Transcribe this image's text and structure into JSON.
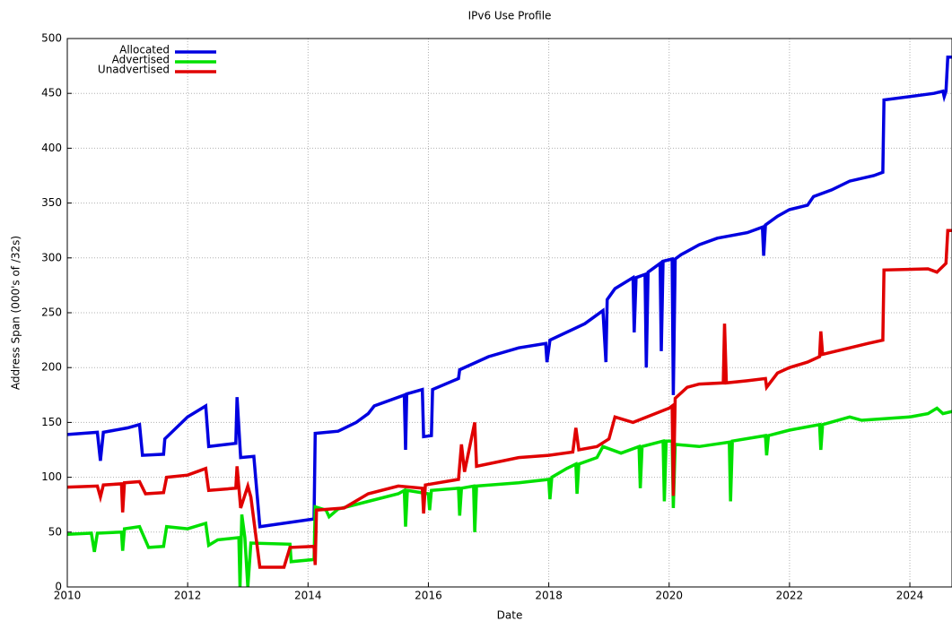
{
  "chart_data": {
    "type": "line",
    "title": "IPv6 Use Profile",
    "x_label": "Date",
    "y_label": "Address Span (000's of /32s)",
    "xlim": [
      2010,
      2024.7
    ],
    "xticks": [
      2010,
      2012,
      2014,
      2016,
      2018,
      2020,
      2022,
      2024
    ],
    "ylim": [
      0,
      500
    ],
    "yticks": [
      0,
      50,
      100,
      150,
      200,
      250,
      300,
      350,
      400,
      450,
      500
    ],
    "grid": true,
    "legend": "upper left",
    "series": [
      {
        "name": "Allocated",
        "color": "#0000e0",
        "x": [
          2010,
          2010.5,
          2010.55,
          2010.6,
          2011,
          2011.2,
          2011.25,
          2011.6,
          2011.62,
          2012,
          2012.3,
          2012.35,
          2012.8,
          2012.82,
          2012.88,
          2013.1,
          2013.2,
          2014.1,
          2014.12,
          2014.5,
          2014.8,
          2015,
          2015.1,
          2015.6,
          2015.62,
          2015.64,
          2015.9,
          2015.92,
          2016.05,
          2016.07,
          2016.5,
          2016.52,
          2017,
          2017.5,
          2017.95,
          2017.97,
          2018.02,
          2018.6,
          2018.9,
          2018.95,
          2018.97,
          2019.1,
          2019.4,
          2019.42,
          2019.45,
          2019.6,
          2019.62,
          2019.65,
          2019.85,
          2019.87,
          2019.9,
          2020.05,
          2020.07,
          2020.1,
          2020.2,
          2020.5,
          2020.8,
          2021.3,
          2021.55,
          2021.57,
          2021.6,
          2021.8,
          2022,
          2022.3,
          2022.4,
          2022.7,
          2023,
          2023.4,
          2023.55,
          2023.57,
          2024.4,
          2024.55,
          2024.57,
          2024.6,
          2024.63,
          2024.7
        ],
        "values": [
          139,
          141,
          115,
          141,
          145,
          148,
          120,
          121,
          135,
          155,
          165,
          128,
          131,
          173,
          118,
          119,
          55,
          62,
          140,
          142,
          150,
          158,
          165,
          175,
          125,
          176,
          180,
          137,
          138,
          180,
          190,
          198,
          210,
          218,
          222,
          205,
          225,
          240,
          252,
          205,
          262,
          272,
          282,
          232,
          282,
          285,
          200,
          287,
          295,
          215,
          297,
          299,
          175,
          299,
          303,
          312,
          318,
          323,
          328,
          302,
          330,
          338,
          344,
          348,
          356,
          362,
          370,
          375,
          378,
          444,
          450,
          452,
          447,
          452,
          483,
          483
        ]
      },
      {
        "name": "Advertised",
        "color": "#00e000",
        "x": [
          2010,
          2010.4,
          2010.45,
          2010.5,
          2010.9,
          2010.92,
          2010.95,
          2011.2,
          2011.35,
          2011.6,
          2011.65,
          2012,
          2012.3,
          2012.35,
          2012.5,
          2012.85,
          2012.87,
          2012.9,
          2012.95,
          2013,
          2013.05,
          2013.7,
          2013.72,
          2014.1,
          2014.12,
          2014.3,
          2014.35,
          2014.5,
          2015,
          2015.5,
          2015.6,
          2015.62,
          2015.65,
          2016,
          2016.02,
          2016.05,
          2016.5,
          2016.52,
          2016.55,
          2016.75,
          2016.77,
          2016.8,
          2017.5,
          2018,
          2018.02,
          2018.05,
          2018.3,
          2018.45,
          2018.47,
          2018.5,
          2018.8,
          2018.9,
          2019.2,
          2019.5,
          2019.52,
          2019.55,
          2019.9,
          2019.92,
          2019.95,
          2020.05,
          2020.07,
          2020.1,
          2020.5,
          2021,
          2021.02,
          2021.05,
          2021.6,
          2021.62,
          2021.65,
          2022,
          2022.5,
          2022.52,
          2022.55,
          2023,
          2023.2,
          2024,
          2024.3,
          2024.45,
          2024.55,
          2024.7
        ],
        "values": [
          48,
          49,
          32,
          49,
          50,
          33,
          53,
          55,
          36,
          37,
          55,
          53,
          58,
          38,
          43,
          45,
          0,
          66,
          45,
          0,
          40,
          39,
          23,
          25,
          73,
          70,
          64,
          71,
          78,
          85,
          88,
          55,
          88,
          85,
          70,
          88,
          90,
          65,
          90,
          92,
          50,
          92,
          95,
          98,
          80,
          100,
          108,
          112,
          85,
          112,
          118,
          128,
          122,
          128,
          90,
          128,
          133,
          78,
          133,
          133,
          72,
          130,
          128,
          132,
          78,
          133,
          138,
          120,
          138,
          143,
          148,
          125,
          148,
          155,
          152,
          155,
          158,
          163,
          158,
          160
        ]
      },
      {
        "name": "Unadvertised",
        "color": "#e00000",
        "x": [
          2010,
          2010.5,
          2010.55,
          2010.6,
          2010.9,
          2010.92,
          2010.95,
          2011.2,
          2011.3,
          2011.6,
          2011.65,
          2012,
          2012.3,
          2012.35,
          2012.8,
          2012.82,
          2012.88,
          2013,
          2013.05,
          2013.2,
          2013.6,
          2013.7,
          2014.1,
          2014.12,
          2014.14,
          2014.6,
          2015,
          2015.5,
          2015.9,
          2015.92,
          2015.95,
          2016.5,
          2016.55,
          2016.6,
          2016.77,
          2016.8,
          2017.5,
          2018,
          2018.4,
          2018.45,
          2018.5,
          2018.8,
          2019,
          2019.1,
          2019.4,
          2020,
          2020.05,
          2020.07,
          2020.1,
          2020.3,
          2020.5,
          2020.9,
          2020.92,
          2020.95,
          2021.3,
          2021.6,
          2021.62,
          2021.8,
          2022,
          2022.3,
          2022.5,
          2022.52,
          2022.55,
          2023,
          2023.3,
          2023.55,
          2023.57,
          2024.3,
          2024.45,
          2024.6,
          2024.63,
          2024.7
        ],
        "values": [
          91,
          92,
          82,
          93,
          94,
          68,
          95,
          96,
          85,
          86,
          100,
          102,
          108,
          88,
          90,
          110,
          72,
          92,
          82,
          18,
          18,
          36,
          37,
          20,
          70,
          72,
          85,
          92,
          90,
          67,
          93,
          98,
          130,
          105,
          150,
          110,
          118,
          120,
          123,
          145,
          125,
          128,
          135,
          155,
          150,
          163,
          165,
          83,
          172,
          182,
          185,
          186,
          240,
          186,
          188,
          190,
          182,
          195,
          200,
          205,
          210,
          233,
          212,
          218,
          222,
          225,
          289,
          290,
          287,
          295,
          325,
          325
        ]
      }
    ]
  }
}
